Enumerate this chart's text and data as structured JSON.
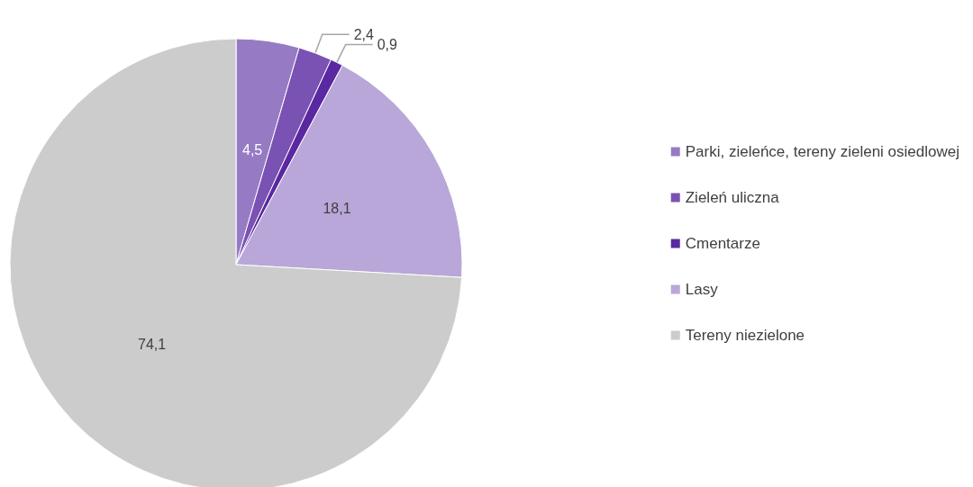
{
  "chart_data": {
    "type": "pie",
    "categories": [
      "Parki, zieleńce, tereny zieleni osiedlowej",
      "Zieleń uliczna",
      "Cmentarze",
      "Lasy",
      "Tereny niezielone"
    ],
    "values": [
      4.5,
      2.4,
      0.9,
      18.1,
      74.1
    ],
    "colors": [
      "#967bc4",
      "#7a52b3",
      "#5a28a0",
      "#b8a7d8",
      "#cccccc"
    ],
    "value_labels": [
      "4,5",
      "2,4",
      "0,9",
      "18,1",
      "74,1"
    ],
    "legend": "right"
  }
}
